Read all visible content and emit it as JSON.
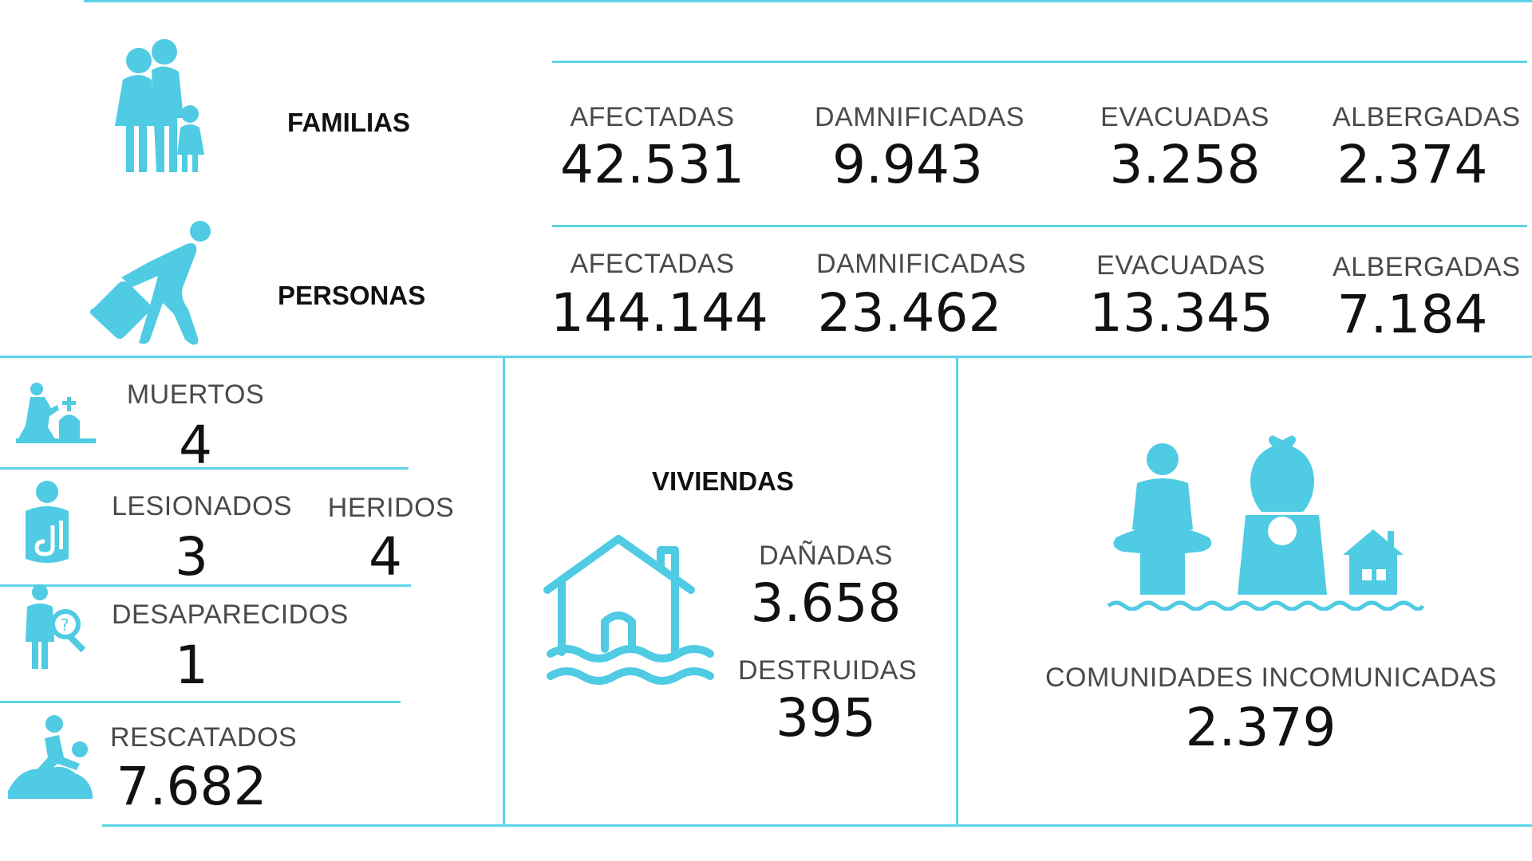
{
  "colors": {
    "accent": "#5fd3ea",
    "icon": "#4fcbe3"
  },
  "familias": {
    "title": "FAMILIAS",
    "icon": "family-icon",
    "stats": [
      {
        "label": "AFECTADAS",
        "value": "42.531"
      },
      {
        "label": "DAMNIFICADAS",
        "value": "9.943"
      },
      {
        "label": "EVACUADAS",
        "value": "3.258"
      },
      {
        "label": "ALBERGADAS",
        "value": "2.374"
      }
    ]
  },
  "personas": {
    "title": "PERSONAS",
    "icon": "running-person-luggage-icon",
    "stats": [
      {
        "label": "AFECTADAS",
        "value": "144.144"
      },
      {
        "label": "DAMNIFICADAS",
        "value": "23.462"
      },
      {
        "label": "EVACUADAS",
        "value": "13.345"
      },
      {
        "label": "ALBERGADAS",
        "value": "7.184"
      }
    ]
  },
  "victims": {
    "muertos": {
      "label": "MUERTOS",
      "value": "4",
      "icon": "mourning-grave-icon"
    },
    "lesionados": {
      "label": "LESIONADOS",
      "value": "3",
      "icon": "injured-person-icon"
    },
    "heridos": {
      "label": "HERIDOS",
      "value": "4"
    },
    "desaparecidos": {
      "label": "DESAPARECIDOS",
      "value": "1",
      "icon": "missing-person-search-icon"
    },
    "rescatados": {
      "label": "RESCATADOS",
      "value": "7.682",
      "icon": "rescue-icon"
    }
  },
  "viviendas": {
    "title": "VIVIENDAS",
    "icon": "flooded-house-icon",
    "danadas": {
      "label": "DAÑADAS",
      "value": "3.658"
    },
    "destruidas": {
      "label": "DESTRUIDAS",
      "value": "395"
    }
  },
  "comunidades": {
    "label": "COMUNIDADES INCOMUNICADAS",
    "value": "2.379",
    "icon": "flood-people-house-icon"
  }
}
